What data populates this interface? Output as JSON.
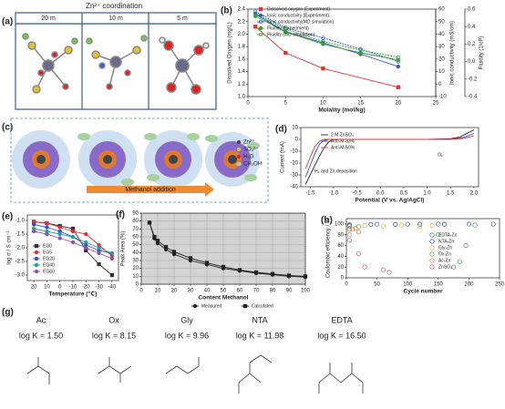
{
  "figure": {
    "a": {
      "label": "(a)",
      "title": "Zn²⁺ coordination",
      "columns": [
        "20 m",
        "10 m",
        "5 m"
      ]
    },
    "c": {
      "label": "(c)",
      "arrow": "Methanol addition",
      "legend": [
        "Zn²⁺",
        "SO₄²⁻",
        "H₂O",
        "CH₃OH"
      ]
    },
    "g": {
      "label": "(g)",
      "ligands": [
        {
          "name": "Ac",
          "logK": "log K = 1.50"
        },
        {
          "name": "Ox",
          "logK": "log K = 8.15"
        },
        {
          "name": "Gly",
          "logK": "log K = 9.96"
        },
        {
          "name": "NTA",
          "logK": "log K = 11.98"
        },
        {
          "name": "EDTA",
          "logK": "log K = 16.50"
        }
      ]
    }
  },
  "chart_data": [
    {
      "type": "line",
      "panel": "(b)",
      "xlabel": "Molality (mol/kg)",
      "ylabel": "Dissolved Oxygen (mg/L)",
      "y2label": "Ionic conductivity (mS/cm)",
      "y3label": "Fluidity (1/cP)",
      "ycolor": "#e03030",
      "y2color": "#3050d0",
      "y3color": "#30a030",
      "xlim": [
        0,
        25
      ],
      "xticks": [
        0,
        5,
        10,
        15,
        20,
        25
      ],
      "ylim": [
        1.0,
        2.4
      ],
      "yticks": [
        {
          "value": 1.0,
          "label": "1.0"
        },
        1.2,
        1.4,
        1.6,
        1.8,
        {
          "value": 2.0,
          "label": "2.0"
        },
        2.2,
        2.4
      ],
      "y2lim": [
        -10,
        60
      ],
      "y2ticks": [
        -10,
        0,
        10,
        20,
        30,
        40,
        50,
        60
      ],
      "y3lim": [
        -0.4,
        0.6
      ],
      "y3ticks": [
        -0.4,
        -0.2,
        {
          "value": 0.0,
          "label": "0.0"
        },
        0.2,
        0.4,
        0.6
      ],
      "series": [
        {
          "name": "Dissolved oxygen (Experiment)",
          "color": "#e03030",
          "marker": "square",
          "x": [
            1,
            5,
            10,
            20
          ],
          "values": [
            2.12,
            1.7,
            1.45,
            1.15
          ]
        },
        {
          "name": "Ionic conductivity (Experiment)",
          "color": "#3050d0",
          "marker": "circle",
          "axis": "y2",
          "x": [
            1,
            5,
            10,
            15,
            20
          ],
          "values": [
            56,
            42,
            33,
            24,
            14
          ]
        },
        {
          "name": "Ionic conductivity(MD simulation)",
          "color": "#3050d0",
          "marker": "circle",
          "hollow": true,
          "axis": "y2",
          "x": [
            1,
            5,
            10,
            15,
            20
          ],
          "values": [
            58,
            45,
            37,
            28,
            18
          ]
        },
        {
          "name": "Fluidity (Experiment)",
          "color": "#30a030",
          "marker": "circle",
          "axis": "y3",
          "x": [
            1,
            5,
            10,
            15,
            20
          ],
          "values": [
            0.52,
            0.34,
            0.2,
            0.1,
            0.02
          ]
        },
        {
          "name": "Fluidity (MD simulation)",
          "color": "#30a030",
          "marker": "circle",
          "hollow": true,
          "axis": "y3",
          "x": [
            1,
            5,
            10,
            15,
            20
          ],
          "values": [
            0.55,
            0.37,
            0.23,
            0.13,
            0.05
          ]
        }
      ]
    },
    {
      "type": "line",
      "panel": "(d)",
      "xlabel": "Potential (V vs. Ag/AgCl)",
      "ylabel": "Current (mA)",
      "annotations": [
        "H₂ and Zn deposition",
        "O₂"
      ],
      "xlim": [
        -1.7,
        2.1
      ],
      "xticks": [
        {
          "value": -1.5,
          "label": "-1.5"
        },
        {
          "value": -1.0,
          "label": "-1.0"
        },
        {
          "value": -0.5,
          "label": "-0.5"
        },
        {
          "value": 0.0,
          "label": "0.0"
        },
        0.5,
        {
          "value": 1.0,
          "label": "1.0"
        },
        1.5,
        {
          "value": 2.0,
          "label": "2.0"
        }
      ],
      "ylim": [
        -40,
        10
      ],
      "yticks": [
        -40,
        -30,
        -20,
        -10,
        0,
        10
      ],
      "x": [
        -1.6,
        -1.5,
        -1.4,
        -1.3,
        -1.2,
        -1.1,
        -1.0,
        -0.5,
        0,
        0.5,
        1.0,
        1.5,
        1.7,
        1.8,
        1.9,
        2.0
      ],
      "series": [
        {
          "name": "2 M ZnSO₄",
          "color": "#222222",
          "values": [
            -38,
            -30,
            -22,
            -14,
            -7,
            -2,
            0,
            0,
            0,
            0,
            0,
            0.5,
            2,
            4,
            6,
            8
          ]
        },
        {
          "name": "Anti-M-33%",
          "color": "#3050d0",
          "values": [
            -32,
            -22,
            -12,
            -4,
            -1,
            0,
            0,
            0,
            0,
            0,
            0,
            0.2,
            1,
            2,
            3.5,
            5
          ]
        },
        {
          "name": "Anti-M-50%",
          "color": "#e03030",
          "values": [
            -25,
            -15,
            -6,
            -1.5,
            0,
            0,
            0,
            0,
            0,
            0,
            0,
            0.1,
            0.5,
            1,
            2,
            3
          ]
        }
      ]
    },
    {
      "type": "line",
      "panel": "(e)",
      "xlabel": "Temperature (℃)",
      "ylabel": "log σ / S cm⁻¹",
      "xlim": [
        25,
        -45
      ],
      "xticks": [
        20,
        10,
        0,
        -10,
        -20,
        -30,
        -40
      ],
      "ylim": [
        -3.2,
        -0.8
      ],
      "yticks": [
        {
          "value": -1.0,
          "label": "-1.0"
        },
        -1.5,
        {
          "value": -2.0,
          "label": "-2.0"
        },
        -2.5,
        {
          "value": -3.0,
          "label": "-3.0"
        }
      ],
      "x": [
        20,
        10,
        0,
        -10,
        -20,
        -30,
        -40
      ],
      "series": [
        {
          "name": "EG0",
          "color": "#333333",
          "marker": "square",
          "values": [
            -1.05,
            -1.1,
            -1.2,
            -1.3,
            -2.1,
            -2.6,
            -3.0
          ]
        },
        {
          "name": "EG5",
          "color": "#e03030",
          "marker": "circle",
          "values": [
            -1.05,
            -1.1,
            -1.25,
            -1.4,
            -1.5,
            -1.9,
            -2.3
          ]
        },
        {
          "name": "EG20",
          "color": "#3050d0",
          "marker": "circle",
          "values": [
            -1.15,
            -1.25,
            -1.4,
            -1.6,
            -1.9,
            -2.1,
            -2.2
          ]
        },
        {
          "name": "EG40",
          "color": "#20a090",
          "marker": "circle",
          "values": [
            -1.3,
            -1.4,
            -1.5,
            -1.6,
            -1.8,
            -2.0,
            -2.2
          ]
        },
        {
          "name": "EG60",
          "color": "#8a50b0",
          "marker": "circle",
          "values": [
            -1.4,
            -1.5,
            -1.65,
            -1.8,
            -2.0,
            -2.2,
            -2.4
          ]
        }
      ]
    },
    {
      "type": "line",
      "panel": "(f)",
      "xlabel": "Content Methanol",
      "ylabel": "Peak Area (%)",
      "grid": true,
      "background": "#d4d4d4",
      "xlim": [
        0,
        100
      ],
      "xticks": [
        0,
        10,
        20,
        30,
        40,
        50,
        60,
        70,
        80,
        90,
        100
      ],
      "ylim": [
        0,
        90
      ],
      "yticks": [
        0,
        10,
        20,
        30,
        40,
        50,
        60,
        70,
        80,
        90
      ],
      "x": [
        5,
        8,
        10,
        15,
        20,
        30,
        40,
        50,
        60,
        70,
        80,
        90,
        100
      ],
      "series": [
        {
          "name": "Measured",
          "color": "#222222",
          "marker": "circle",
          "values": [
            78,
            58,
            52,
            44,
            38,
            30,
            25,
            20,
            17,
            14,
            12,
            10,
            9
          ]
        },
        {
          "name": "Calculated",
          "color": "#222222",
          "marker": "square",
          "values": [
            78,
            60,
            55,
            47,
            41,
            33,
            27,
            22,
            18,
            15,
            13,
            11,
            10
          ]
        }
      ]
    },
    {
      "type": "scatter",
      "panel": "(h)",
      "xlabel": "Cycle number",
      "ylabel": "Coulombic efficiency / %",
      "xlim": [
        0,
        250
      ],
      "xticks": [
        0,
        50,
        100,
        150,
        200,
        250
      ],
      "ylim": [
        0,
        110
      ],
      "yticks": [
        0,
        20,
        40,
        60,
        80,
        100
      ],
      "series": [
        {
          "name": "EDTA-Zn",
          "color": "#3060c0",
          "x": [
            5,
            50,
            100,
            150,
            200,
            240
          ],
          "values": [
            99,
            99.5,
            99.6,
            99.7,
            99.7,
            99.8
          ]
        },
        {
          "name": "NTA-Zn",
          "color": "#1a3a8a",
          "x": [
            5,
            40,
            80,
            120,
            160
          ],
          "values": [
            97,
            99,
            99.3,
            99.5,
            99.5
          ]
        },
        {
          "name": "Gly-Zn",
          "color": "#d8b040",
          "x": [
            5,
            30,
            60,
            90,
            120,
            140
          ],
          "values": [
            95,
            97,
            96,
            98,
            95,
            97
          ]
        },
        {
          "name": "Ox-Zn",
          "color": "#40a040",
          "x": [
            5,
            20,
            150,
            175,
            185,
            195,
            210
          ],
          "values": [
            90,
            95,
            80,
            20,
            30,
            60,
            98
          ]
        },
        {
          "name": "Ac-Zn",
          "color": "#e07030",
          "x": [
            5,
            10,
            15,
            20
          ],
          "values": [
            80,
            90,
            92,
            85
          ]
        },
        {
          "name": "ZnSO₄",
          "color": "#d05070",
          "x": [
            5,
            20,
            30,
            60,
            70
          ],
          "values": [
            70,
            45,
            20,
            15,
            10
          ]
        }
      ]
    }
  ]
}
